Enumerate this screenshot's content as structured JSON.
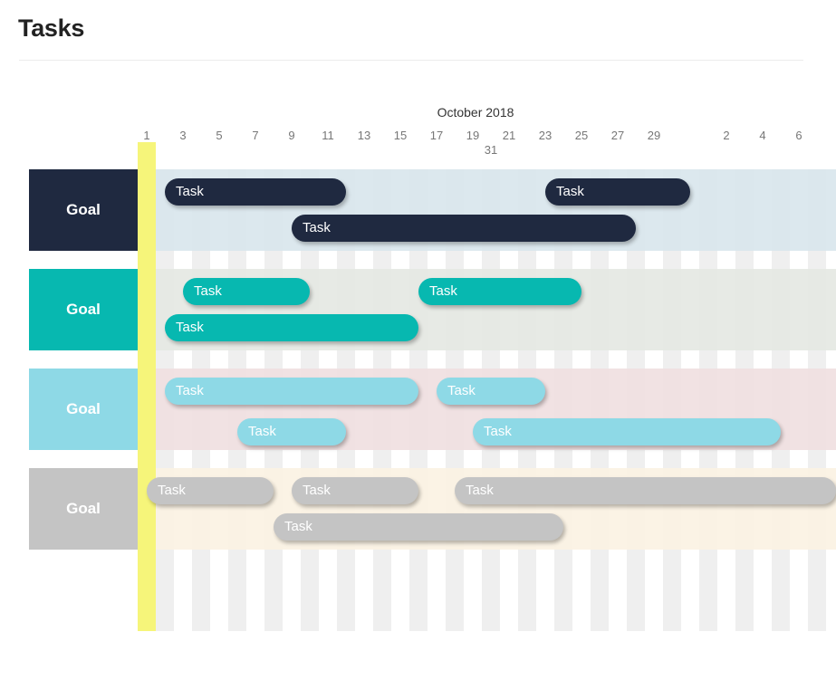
{
  "page": {
    "title": "Tasks"
  },
  "timeline": {
    "month": "October 2018",
    "ticks": [
      "1",
      "3",
      "5",
      "7",
      "9",
      "11",
      "13",
      "15",
      "17",
      "19",
      "21",
      "23",
      "25",
      "27",
      "29",
      "2",
      "4",
      "6"
    ],
    "ticks_second_row": [
      "31"
    ],
    "today_tick": "1",
    "column_count": 38
  },
  "goals": [
    {
      "label": "Goal",
      "color": "#1f2940",
      "band_color": "#d8e5ec",
      "text_color": "#ffffff",
      "tasks": [
        {
          "label": "Task",
          "start_day": 2,
          "end_day": 11,
          "lane": 0
        },
        {
          "label": "Task",
          "start_day": 23,
          "end_day": 30,
          "lane": 0
        },
        {
          "label": "Task",
          "start_day": 9,
          "end_day": 27,
          "lane": 1
        }
      ]
    },
    {
      "label": "Goal",
      "color": "#07b8b0",
      "band_color": "#e4e8e2",
      "text_color": "#ffffff",
      "tasks": [
        {
          "label": "Task",
          "start_day": 3,
          "end_day": 9,
          "lane": 0
        },
        {
          "label": "Task",
          "start_day": 16,
          "end_day": 24,
          "lane": 0
        },
        {
          "label": "Task",
          "start_day": 2,
          "end_day": 15,
          "lane": 1
        }
      ]
    },
    {
      "label": "Goal",
      "color": "#8ed9e6",
      "band_color": "#f0dfe0",
      "text_color": "#ffffff",
      "tasks": [
        {
          "label": "Task",
          "start_day": 2,
          "end_day": 15,
          "lane": 0
        },
        {
          "label": "Task",
          "start_day": 17,
          "end_day": 22,
          "lane": 0
        },
        {
          "label": "Task",
          "start_day": 6,
          "end_day": 11,
          "lane": 1
        },
        {
          "label": "Task",
          "start_day": 19,
          "end_day": 35,
          "lane": 1
        }
      ]
    },
    {
      "label": "Goal",
      "color": "#c4c4c4",
      "band_color": "#fbf2e2",
      "text_color": "#ffffff",
      "tasks": [
        {
          "label": "Task",
          "start_day": 1,
          "end_day": 7,
          "lane": 0
        },
        {
          "label": "Task",
          "start_day": 9,
          "end_day": 15,
          "lane": 0
        },
        {
          "label": "Task",
          "start_day": 18,
          "end_day": 39,
          "lane": 0
        },
        {
          "label": "Task",
          "start_day": 8,
          "end_day": 23,
          "lane": 1
        }
      ]
    }
  ]
}
